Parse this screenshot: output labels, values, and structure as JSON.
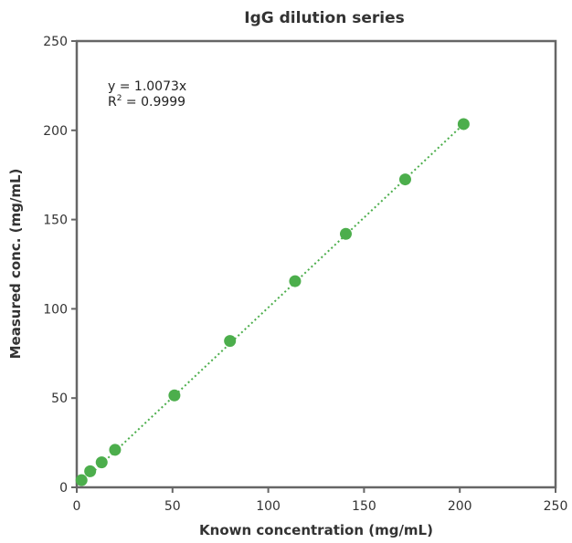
{
  "chart_data": {
    "type": "scatter",
    "title": "IgG dilution series",
    "xlabel": "Known concentration (mg/mL)",
    "ylabel": "Measured conc. (mg/mL)",
    "xlim": [
      0,
      250
    ],
    "ylim": [
      0,
      250
    ],
    "x_ticks": [
      0,
      50,
      100,
      150,
      200,
      250
    ],
    "y_ticks": [
      0,
      50,
      100,
      150,
      200,
      250
    ],
    "grid": false,
    "legend": "none",
    "series": [
      {
        "points": [
          {
            "x": 2.5,
            "y": 4
          },
          {
            "x": 7,
            "y": 9
          },
          {
            "x": 13,
            "y": 14
          },
          {
            "x": 20,
            "y": 21
          },
          {
            "x": 51,
            "y": 51.5
          },
          {
            "x": 80,
            "y": 82
          },
          {
            "x": 114,
            "y": 115.5
          },
          {
            "x": 140.5,
            "y": 142
          },
          {
            "x": 171.5,
            "y": 172.5
          },
          {
            "x": 202,
            "y": 203.5
          }
        ]
      }
    ],
    "trendline": {
      "type": "linear",
      "slope": 1.0073,
      "style": "dotted"
    },
    "annotations": {
      "equation": "y = 1.0073x",
      "r_squared_prefix": "R",
      "r_squared_sup": "2",
      "r_squared_value": " = 0.9999"
    },
    "colors": {
      "marker": "#4cae4c",
      "trendline": "#4cae4c",
      "axis": "#666666",
      "text": "#333333"
    }
  }
}
